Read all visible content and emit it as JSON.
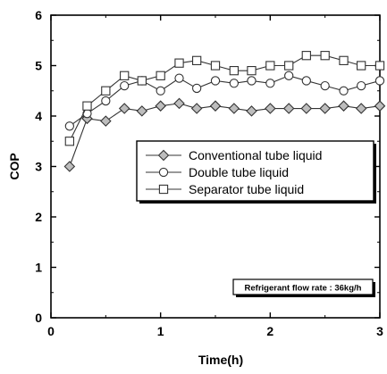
{
  "chart_data": {
    "type": "line",
    "title": "",
    "xlabel": "Time(h)",
    "ylabel": "COP",
    "xlim": [
      0,
      3
    ],
    "ylim": [
      0,
      6
    ],
    "x_ticks": [
      0,
      1,
      2,
      3
    ],
    "y_ticks": [
      0,
      1,
      2,
      3,
      4,
      5,
      6
    ],
    "grid": false,
    "legend_position": "center-right",
    "annotation": "Refrigerant flow rate : 36kg/h",
    "series": [
      {
        "name": "Conventional tube liquid",
        "marker": "diamond",
        "x": [
          0.17,
          0.33,
          0.5,
          0.67,
          0.83,
          1.0,
          1.17,
          1.33,
          1.5,
          1.67,
          1.83,
          2.0,
          2.17,
          2.33,
          2.5,
          2.67,
          2.83,
          3.0
        ],
        "values": [
          3.0,
          3.95,
          3.9,
          4.15,
          4.1,
          4.2,
          4.25,
          4.15,
          4.2,
          4.15,
          4.1,
          4.15,
          4.15,
          4.15,
          4.15,
          4.2,
          4.15,
          4.2
        ]
      },
      {
        "name": "Double tube liquid",
        "marker": "circle",
        "x": [
          0.17,
          0.33,
          0.5,
          0.67,
          0.83,
          1.0,
          1.17,
          1.33,
          1.5,
          1.67,
          1.83,
          2.0,
          2.17,
          2.33,
          2.5,
          2.67,
          2.83,
          3.0
        ],
        "values": [
          3.8,
          4.05,
          4.3,
          4.6,
          4.7,
          4.5,
          4.75,
          4.55,
          4.7,
          4.65,
          4.7,
          4.65,
          4.8,
          4.7,
          4.6,
          4.5,
          4.6,
          4.7
        ]
      },
      {
        "name": "Separator tube liquid",
        "marker": "square",
        "x": [
          0.17,
          0.33,
          0.5,
          0.67,
          0.83,
          1.0,
          1.17,
          1.33,
          1.5,
          1.67,
          1.83,
          2.0,
          2.17,
          2.33,
          2.5,
          2.67,
          2.83,
          3.0
        ],
        "values": [
          3.5,
          4.2,
          4.5,
          4.8,
          4.7,
          4.8,
          5.05,
          5.1,
          5.0,
          4.9,
          4.9,
          5.0,
          5.0,
          5.2,
          5.2,
          5.1,
          5.0,
          5.0
        ]
      }
    ]
  }
}
